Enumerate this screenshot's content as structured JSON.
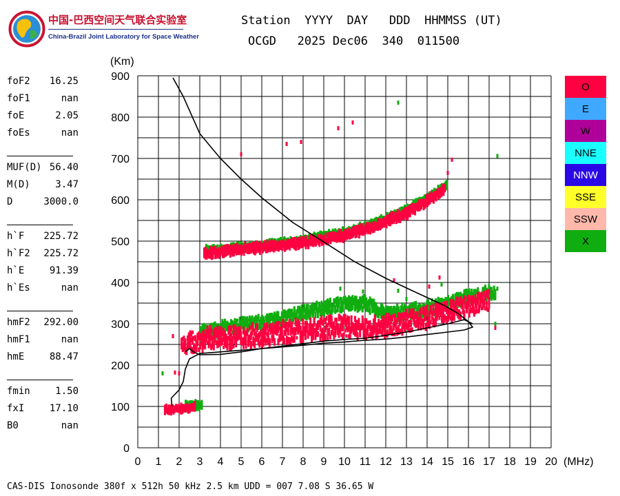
{
  "logo": {
    "cn_text": "中国-巴西空间天气联合实验室",
    "en_text": "China-Brazil Joint Laboratory for Space Weather"
  },
  "header": {
    "labels": "Station  YYYY  DAY   DDD  HHMMSS (UT)",
    "station": "OCGD",
    "year_day": "2025 Dec06",
    "doy": "340",
    "time": "011500"
  },
  "params": [
    {
      "name": "foF2",
      "value": "16.25"
    },
    {
      "name": "foF1",
      "value": "nan"
    },
    {
      "name": "foE",
      "value": "2.05"
    },
    {
      "name": "foEs",
      "value": "nan"
    },
    {
      "name": "MUF(D)",
      "value": "56.40"
    },
    {
      "name": "M(D)",
      "value": "3.47"
    },
    {
      "name": "D",
      "value": "3000.0"
    },
    {
      "name": "h`F",
      "value": "225.72"
    },
    {
      "name": "h`F2",
      "value": "225.72"
    },
    {
      "name": "h`E",
      "value": "91.39"
    },
    {
      "name": "h`Es",
      "value": "nan"
    },
    {
      "name": "hmF2",
      "value": "292.00"
    },
    {
      "name": "hmF1",
      "value": "nan"
    },
    {
      "name": "hmE",
      "value": "88.47"
    },
    {
      "name": "fmin",
      "value": "1.50"
    },
    {
      "name": "fxI",
      "value": "17.10"
    },
    {
      "name": "B0",
      "value": "nan"
    }
  ],
  "footer": "CAS-DIS Ionosonde 380f x 512h 50 kHz 2.5 km UDD = 007 7.08 S 36.65 W",
  "legend": [
    {
      "label": "O",
      "color": "#ff0040"
    },
    {
      "label": "E",
      "color": "#3fa9ff"
    },
    {
      "label": "W",
      "color": "#b0009a"
    },
    {
      "label": "NNE",
      "color": "#1affff"
    },
    {
      "label": "NNW",
      "color": "#2a08e6"
    },
    {
      "label": "SSE",
      "color": "#ffff2a"
    },
    {
      "label": "SSW",
      "color": "#ffb8aa"
    },
    {
      "label": "X",
      "color": "#10ad10"
    }
  ],
  "chart_data": {
    "type": "scatter",
    "xlabel": "(MHz)",
    "ylabel": "(Km)",
    "xlim": [
      0,
      20
    ],
    "ylim": [
      0,
      900
    ],
    "xticks": [
      0,
      1,
      2,
      3,
      4,
      5,
      6,
      7,
      8,
      9,
      10,
      11,
      12,
      13,
      14,
      15,
      16,
      17,
      18,
      19,
      20
    ],
    "yticks": [
      0,
      100,
      200,
      300,
      400,
      500,
      600,
      700,
      800,
      900
    ],
    "grid": true,
    "series": [
      {
        "name": "O",
        "color": "#ff0040",
        "traces": [
          {
            "kind": "band",
            "points": [
              [
                2.1,
                245
              ],
              [
                3,
                258
              ],
              [
                4,
                262
              ],
              [
                5,
                265
              ],
              [
                6,
                270
              ],
              [
                7,
                275
              ],
              [
                8,
                280
              ],
              [
                9,
                285
              ],
              [
                10,
                290
              ],
              [
                11,
                285
              ],
              [
                12,
                290
              ],
              [
                13,
                300
              ],
              [
                14,
                312
              ],
              [
                15,
                325
              ],
              [
                16,
                338
              ],
              [
                17,
                355
              ]
            ],
            "spread_low": 20,
            "spread_high": 28
          },
          {
            "kind": "band",
            "points": [
              [
                3.2,
                470
              ],
              [
                4,
                475
              ],
              [
                5,
                480
              ],
              [
                6,
                485
              ],
              [
                7,
                490
              ],
              [
                8,
                497
              ],
              [
                9,
                505
              ],
              [
                10,
                515
              ],
              [
                11,
                528
              ],
              [
                12,
                548
              ],
              [
                13,
                568
              ],
              [
                14,
                598
              ],
              [
                14.9,
                628
              ]
            ],
            "spread_low": 9,
            "spread_high": 9
          },
          {
            "kind": "band",
            "points": [
              [
                1.3,
                92
              ],
              [
                1.8,
                93
              ],
              [
                2.3,
                96
              ],
              [
                2.8,
                100
              ]
            ],
            "spread_low": 5,
            "spread_high": 5
          },
          {
            "kind": "points",
            "points": [
              [
                5,
                710
              ],
              [
                7.2,
                735
              ],
              [
                7.9,
                740
              ],
              [
                9.7,
                773
              ],
              [
                10.4,
                787
              ],
              [
                15.2,
                697
              ],
              [
                15.0,
                665
              ],
              [
                1.7,
                270
              ],
              [
                1.8,
                182
              ],
              [
                2.0,
                180
              ],
              [
                12.4,
                405
              ],
              [
                14.1,
                390
              ],
              [
                14.6,
                412
              ],
              [
                16.5,
                330
              ],
              [
                17.3,
                290
              ]
            ]
          }
        ]
      },
      {
        "name": "X",
        "color": "#10ad10",
        "traces": [
          {
            "kind": "band",
            "points": [
              [
                3,
                275
              ],
              [
                4,
                283
              ],
              [
                5,
                292
              ],
              [
                6,
                300
              ],
              [
                7,
                310
              ],
              [
                8,
                322
              ],
              [
                9,
                335
              ],
              [
                10,
                345
              ],
              [
                11,
                345
              ],
              [
                12,
                320
              ],
              [
                13,
                325
              ],
              [
                14,
                332
              ],
              [
                15,
                345
              ],
              [
                16,
                360
              ],
              [
                17.3,
                372
              ]
            ],
            "spread_low": 10,
            "spread_high": 18
          },
          {
            "kind": "band",
            "points": [
              [
                3.3,
                478
              ],
              [
                4,
                480
              ],
              [
                5,
                486
              ],
              [
                6,
                490
              ],
              [
                7,
                496
              ],
              [
                8,
                503
              ],
              [
                9,
                512
              ],
              [
                10,
                522
              ],
              [
                11,
                535
              ],
              [
                12,
                555
              ],
              [
                13,
                577
              ],
              [
                14,
                605
              ],
              [
                15,
                635
              ]
            ],
            "spread_low": 6,
            "spread_high": 6
          },
          {
            "kind": "band",
            "points": [
              [
                2.3,
                100
              ],
              [
                2.8,
                102
              ],
              [
                3.1,
                100
              ]
            ],
            "spread_low": 5,
            "spread_high": 8
          },
          {
            "kind": "points",
            "points": [
              [
                12.6,
                835
              ],
              [
                17.4,
                706
              ],
              [
                1.2,
                180
              ],
              [
                12.6,
                380
              ],
              [
                13.0,
                360
              ],
              [
                14.7,
                395
              ],
              [
                17.4,
                385
              ],
              [
                17.3,
                300
              ],
              [
                9.8,
                385
              ],
              [
                10.9,
                378
              ]
            ]
          }
        ]
      },
      {
        "name": "profile",
        "color": "#000000",
        "traces": [
          {
            "kind": "line",
            "points": [
              [
                1.65,
                100
              ],
              [
                1.62,
                120
              ],
              [
                2.0,
                140
              ],
              [
                2.2,
                160
              ],
              [
                2.3,
                190
              ],
              [
                2.5,
                215
              ],
              [
                3,
                228
              ],
              [
                4,
                232
              ],
              [
                5,
                236
              ],
              [
                6,
                240
              ],
              [
                7,
                244
              ],
              [
                8,
                248
              ],
              [
                9,
                253
              ],
              [
                10,
                256
              ],
              [
                11,
                260
              ],
              [
                12,
                263
              ],
              [
                13,
                268
              ],
              [
                14,
                274
              ],
              [
                15,
                280
              ],
              [
                15.8,
                285
              ],
              [
                16.2,
                292
              ],
              [
                16.0,
                305
              ],
              [
                15.5,
                325
              ],
              [
                14.8,
                345
              ],
              [
                13.5,
                375
              ],
              [
                12,
                410
              ],
              [
                10.5,
                450
              ],
              [
                9,
                498
              ],
              [
                7.5,
                545
              ],
              [
                6,
                605
              ],
              [
                5,
                650
              ],
              [
                4,
                700
              ],
              [
                3,
                760
              ],
              [
                2.2,
                850
              ],
              [
                1.7,
                895
              ]
            ]
          },
          {
            "kind": "line",
            "points": [
              [
                2.3,
                232
              ],
              [
                2.5,
                240
              ],
              [
                2.7,
                232
              ],
              [
                3,
                225
              ],
              [
                4,
                226
              ],
              [
                5,
                232
              ],
              [
                6,
                240
              ],
              [
                7,
                246
              ],
              [
                8,
                252
              ],
              [
                9,
                258
              ],
              [
                10,
                262
              ],
              [
                11,
                265
              ],
              [
                12,
                272
              ],
              [
                13,
                280
              ],
              [
                14,
                290
              ],
              [
                15,
                300
              ],
              [
                15.8,
                310
              ],
              [
                16.2,
                300
              ]
            ]
          }
        ]
      }
    ]
  }
}
